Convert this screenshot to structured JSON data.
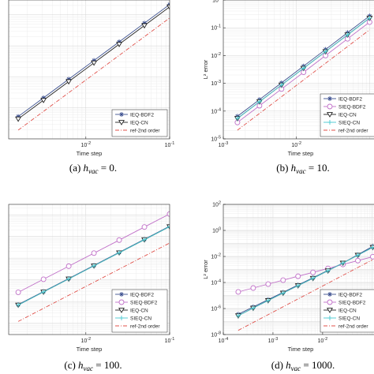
{
  "chart_data": [
    {
      "type": "line",
      "xlabel": "Time step",
      "ylabel": "",
      "xscale": "log",
      "yscale": "log",
      "xlim": [
        0.0012,
        0.1
      ],
      "ylim": [
        1e-05,
        0.3
      ],
      "xticks": [
        {
          "v": 0.01,
          "label": "10",
          "exp": "-2"
        },
        {
          "v": 0.1,
          "label": "10",
          "exp": "-1"
        }
      ],
      "yticks": [],
      "grid": true,
      "legend_position": "bottom-right",
      "caption": {
        "pre": "(a)  ",
        "var": "h",
        "sub": "vac",
        "post": " = 0."
      },
      "series": [
        {
          "name": "IEQ-BDF2",
          "color": "#3b4f8f",
          "marker": "star",
          "dash": "",
          "x": [
            0.00156,
            0.003125,
            0.00625,
            0.0125,
            0.025,
            0.05,
            0.1
          ],
          "y": [
            5.25e-05,
            0.00021,
            0.00084,
            0.00336,
            0.01344,
            0.0538,
            0.215
          ]
        },
        {
          "name": "IEQ-CN",
          "color": "#222222",
          "marker": "triangle-down",
          "dash": "",
          "x": [
            0.00156,
            0.003125,
            0.00625,
            0.0125,
            0.025,
            0.05,
            0.1
          ],
          "y": [
            4.4e-05,
            0.000176,
            0.000704,
            0.00282,
            0.01126,
            0.045,
            0.18
          ]
        },
        {
          "name": "ref-2nd order",
          "color": "#e0504a",
          "marker": "none",
          "dash": "5,2,1,2",
          "x": [
            0.00156,
            0.1
          ],
          "y": [
            1.92e-05,
            0.0789
          ]
        }
      ]
    },
    {
      "type": "line",
      "xlabel": "Time step",
      "ylabel": "L² error",
      "xscale": "log",
      "yscale": "log",
      "xlim": [
        0.001,
        0.13
      ],
      "ylim": [
        1e-05,
        1
      ],
      "xticks": [
        {
          "v": 0.001,
          "label": "10",
          "exp": "-3"
        },
        {
          "v": 0.01,
          "label": "10",
          "exp": "-2"
        }
      ],
      "yticks": [
        {
          "v": 1e-05,
          "label": "10",
          "exp": "-5"
        },
        {
          "v": 0.0001,
          "label": "10",
          "exp": "-4"
        },
        {
          "v": 0.001,
          "label": "10",
          "exp": "-3"
        },
        {
          "v": 0.01,
          "label": "10",
          "exp": "-2"
        },
        {
          "v": 0.1,
          "label": "10",
          "exp": "-1"
        },
        {
          "v": 1,
          "label": "10",
          "exp": "0"
        }
      ],
      "grid": true,
      "legend_position": "bottom-right",
      "caption": {
        "pre": "(b)  ",
        "var": "h",
        "sub": "vac",
        "post": " = 10."
      },
      "series": [
        {
          "name": "IEQ-BDF2",
          "color": "#3b4f8f",
          "marker": "star",
          "dash": "",
          "x": [
            0.00156,
            0.003125,
            0.00625,
            0.0125,
            0.025,
            0.05,
            0.1
          ],
          "y": [
            6.5e-05,
            0.00026,
            0.00104,
            0.00416,
            0.0166,
            0.0666,
            0.266
          ]
        },
        {
          "name": "SIEQ-BDF2",
          "color": "#c070c8",
          "marker": "circle",
          "dash": "",
          "x": [
            0.00156,
            0.003125,
            0.00625,
            0.0125,
            0.025,
            0.05,
            0.1
          ],
          "y": [
            3.9e-05,
            0.000156,
            0.000624,
            0.0025,
            0.01,
            0.04,
            0.16
          ]
        },
        {
          "name": "IEQ-CN",
          "color": "#222222",
          "marker": "triangle-down",
          "dash": "",
          "x": [
            0.00156,
            0.003125,
            0.00625,
            0.0125,
            0.025,
            0.05,
            0.1
          ],
          "y": [
            5.45e-05,
            0.000218,
            0.000872,
            0.00349,
            0.01395,
            0.0558,
            0.223
          ]
        },
        {
          "name": "SIEQ-CN",
          "color": "#48c8d0",
          "marker": "plus",
          "dash": "",
          "x": [
            0.00156,
            0.003125,
            0.00625,
            0.0125,
            0.025,
            0.05,
            0.1
          ],
          "y": [
            5.45e-05,
            0.000218,
            0.000872,
            0.00349,
            0.01395,
            0.0558,
            0.223
          ]
        },
        {
          "name": "ref-2nd order",
          "color": "#e0504a",
          "marker": "none",
          "dash": "5,2,1,2",
          "x": [
            0.00156,
            0.1
          ],
          "y": [
            2.05e-05,
            0.0842
          ]
        }
      ]
    },
    {
      "type": "line",
      "xlabel": "Time step",
      "ylabel": "",
      "xscale": "log",
      "yscale": "log",
      "xlim": [
        0.0012,
        0.1
      ],
      "ylim": [
        3e-07,
        0.3
      ],
      "xticks": [
        {
          "v": 0.01,
          "label": "10",
          "exp": "-2"
        },
        {
          "v": 0.1,
          "label": "10",
          "exp": "-1"
        }
      ],
      "yticks": [],
      "grid": true,
      "legend_position": "bottom-right",
      "caption": {
        "pre": "(c)  ",
        "var": "h",
        "sub": "vac",
        "post": " = 100."
      },
      "series": [
        {
          "name": "IEQ-BDF2",
          "color": "#3b4f8f",
          "marker": "star",
          "dash": "",
          "x": [
            0.00156,
            0.003125,
            0.00625,
            0.0125,
            0.025,
            0.05,
            0.1
          ],
          "y": [
            7.2e-06,
            2.88e-05,
            0.000115,
            0.00046,
            0.00184,
            0.00737,
            0.0295
          ]
        },
        {
          "name": "SIEQ-BDF2",
          "color": "#c070c8",
          "marker": "circle",
          "dash": "",
          "x": [
            0.00156,
            0.003125,
            0.00625,
            0.0125,
            0.025,
            0.05,
            0.1
          ],
          "y": [
            2.65e-05,
            0.000106,
            0.000424,
            0.0017,
            0.00678,
            0.0271,
            0.1085
          ]
        },
        {
          "name": "IEQ-CN",
          "color": "#222222",
          "marker": "triangle-down",
          "dash": "",
          "x": [
            0.00156,
            0.003125,
            0.00625,
            0.0125,
            0.025,
            0.05,
            0.1
          ],
          "y": [
            6.9e-06,
            2.76e-05,
            0.00011,
            0.00044,
            0.00177,
            0.00707,
            0.0283
          ]
        },
        {
          "name": "SIEQ-CN",
          "color": "#48c8d0",
          "marker": "plus",
          "dash": "",
          "x": [
            0.00156,
            0.003125,
            0.00625,
            0.0125,
            0.025,
            0.05,
            0.1
          ],
          "y": [
            6.9e-06,
            2.76e-05,
            0.00011,
            0.00044,
            0.00177,
            0.00707,
            0.0283
          ]
        },
        {
          "name": "ref-2nd order",
          "color": "#e0504a",
          "marker": "none",
          "dash": "5,2,1,2",
          "x": [
            0.00156,
            0.1
          ],
          "y": [
            1.2e-06,
            0.00494
          ]
        }
      ]
    },
    {
      "type": "line",
      "xlabel": "Time step",
      "ylabel": "L² error",
      "xscale": "log",
      "yscale": "log",
      "xlim": [
        0.0001,
        0.13
      ],
      "ylim": [
        1e-08,
        100
      ],
      "xticks": [
        {
          "v": 0.0001,
          "label": "10",
          "exp": "-4"
        },
        {
          "v": 0.001,
          "label": "10",
          "exp": "-3"
        },
        {
          "v": 0.01,
          "label": "10",
          "exp": "-2"
        }
      ],
      "yticks": [
        {
          "v": 1e-08,
          "label": "10",
          "exp": "-8"
        },
        {
          "v": 1e-06,
          "label": "10",
          "exp": "-6"
        },
        {
          "v": 0.0001,
          "label": "10",
          "exp": "-4"
        },
        {
          "v": 0.01,
          "label": "10",
          "exp": "-2"
        },
        {
          "v": 1,
          "label": "10",
          "exp": "0"
        },
        {
          "v": 100,
          "label": "10",
          "exp": "2"
        }
      ],
      "grid": true,
      "legend_position": "bottom-right",
      "caption": {
        "pre": "(d)  ",
        "var": "h",
        "sub": "vac",
        "post": " = 1000."
      },
      "series": [
        {
          "name": "IEQ-BDF2",
          "color": "#3b4f8f",
          "marker": "star",
          "dash": "",
          "x": [
            0.0002,
            0.0004,
            0.0008,
            0.0016,
            0.0032,
            0.0064,
            0.0128,
            0.0256,
            0.0512,
            0.1024
          ],
          "y": [
            3.6e-07,
            1.32e-06,
            4.8e-06,
            1.75e-05,
            6.37e-05,
            0.000232,
            0.00085,
            0.0031,
            0.0135,
            0.06
          ]
        },
        {
          "name": "SIEQ-BDF2",
          "color": "#c070c8",
          "marker": "circle",
          "dash": "",
          "x": [
            0.0002,
            0.0004,
            0.0008,
            0.0016,
            0.0032,
            0.0064,
            0.0128,
            0.0256,
            0.0512,
            0.1024
          ],
          "y": [
            1.88e-05,
            3.76e-05,
            7.52e-05,
            0.00015,
            0.0003,
            0.0006,
            0.0012,
            0.0024,
            0.0048,
            0.0096
          ]
        },
        {
          "name": "IEQ-CN",
          "color": "#222222",
          "marker": "triangle-down",
          "dash": "",
          "x": [
            0.0002,
            0.0004,
            0.0008,
            0.0016,
            0.0032,
            0.0064,
            0.0128,
            0.0256,
            0.0512,
            0.1024
          ],
          "y": [
            2.8e-07,
            1.08e-06,
            4.1e-06,
            1.54e-05,
            5.7e-05,
            0.00021,
            0.0008,
            0.0031,
            0.0125,
            0.05
          ]
        },
        {
          "name": "SIEQ-CN",
          "color": "#48c8d0",
          "marker": "plus",
          "dash": "",
          "x": [
            0.0002,
            0.0004,
            0.0008,
            0.0016,
            0.0032,
            0.0064,
            0.0128,
            0.0256,
            0.0512,
            0.1024
          ],
          "y": [
            2.8e-07,
            1.08e-06,
            4.1e-06,
            1.54e-05,
            5.7e-05,
            0.00021,
            0.0008,
            0.0031,
            0.0125,
            0.05
          ]
        },
        {
          "name": "ref-2nd order",
          "color": "#e0504a",
          "marker": "none",
          "dash": "5,2,1,2",
          "x": [
            0.0002,
            0.1
          ],
          "y": [
            2.1e-08,
            0.0054
          ]
        }
      ]
    }
  ]
}
